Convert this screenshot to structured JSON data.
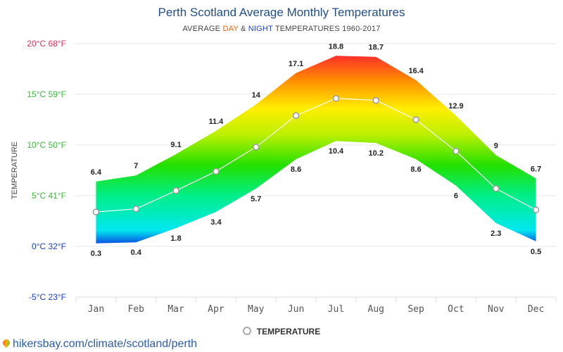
{
  "title": "Perth Scotland Average Monthly Temperatures",
  "subtitle": {
    "prefix": "AVERAGE ",
    "day": "DAY",
    "amp": " & ",
    "night": "NIGHT",
    "suffix": " TEMPERATURES 1960-2017"
  },
  "legend": {
    "label": "TEMPERATURE"
  },
  "source": "hikersbay.com/climate/scotland/perth",
  "colors": {
    "title": "#1f4e8c",
    "day": "#ff6600",
    "night": "#1a3fcc",
    "grid": "#e6e6e6",
    "axis_label_blue": "#1a3fcc",
    "axis_label_green": "#3cba3c",
    "axis_label_red": "#e0305a"
  },
  "chart_data": {
    "type": "area",
    "categories": [
      "Jan",
      "Feb",
      "Mar",
      "Apr",
      "May",
      "Jun",
      "Jul",
      "Aug",
      "Sep",
      "Oct",
      "Nov",
      "Dec"
    ],
    "series": [
      {
        "name": "DAY",
        "values": [
          6.4,
          7,
          9.1,
          11.4,
          14,
          17.1,
          18.8,
          18.7,
          16.4,
          12.9,
          9,
          6.7
        ]
      },
      {
        "name": "NIGHT",
        "values": [
          0.3,
          0.4,
          1.8,
          3.4,
          5.7,
          8.6,
          10.4,
          10.2,
          8.6,
          6,
          2.3,
          0.5
        ]
      },
      {
        "name": "TEMPERATURE",
        "values": [
          3.4,
          3.7,
          5.5,
          7.4,
          9.8,
          12.9,
          14.6,
          14.4,
          12.5,
          9.4,
          5.7,
          3.6
        ]
      }
    ],
    "day_labels": [
      "6.4",
      "7",
      "9.1",
      "11.4",
      "14",
      "17.1",
      "18.8",
      "18.7",
      "16.4",
      "12.9",
      "9",
      "6.7"
    ],
    "night_labels": [
      "0.3",
      "0.4",
      "1.8",
      "3.4",
      "5.7",
      "8.6",
      "10.4",
      "10.2",
      "8.6",
      "6",
      "2.3",
      "0.5"
    ],
    "yticks": [
      -5,
      0,
      5,
      10,
      15,
      20
    ],
    "ytick_labels": [
      "-5°C 23°F",
      "0°C 32°F",
      "5°C 41°F",
      "10°C 50°F",
      "15°C 59°F",
      "20°C 68°F"
    ],
    "ylabel": "TEMPERATURE",
    "ylim": [
      -5,
      20
    ],
    "grid": true,
    "legend_position": "bottom"
  }
}
